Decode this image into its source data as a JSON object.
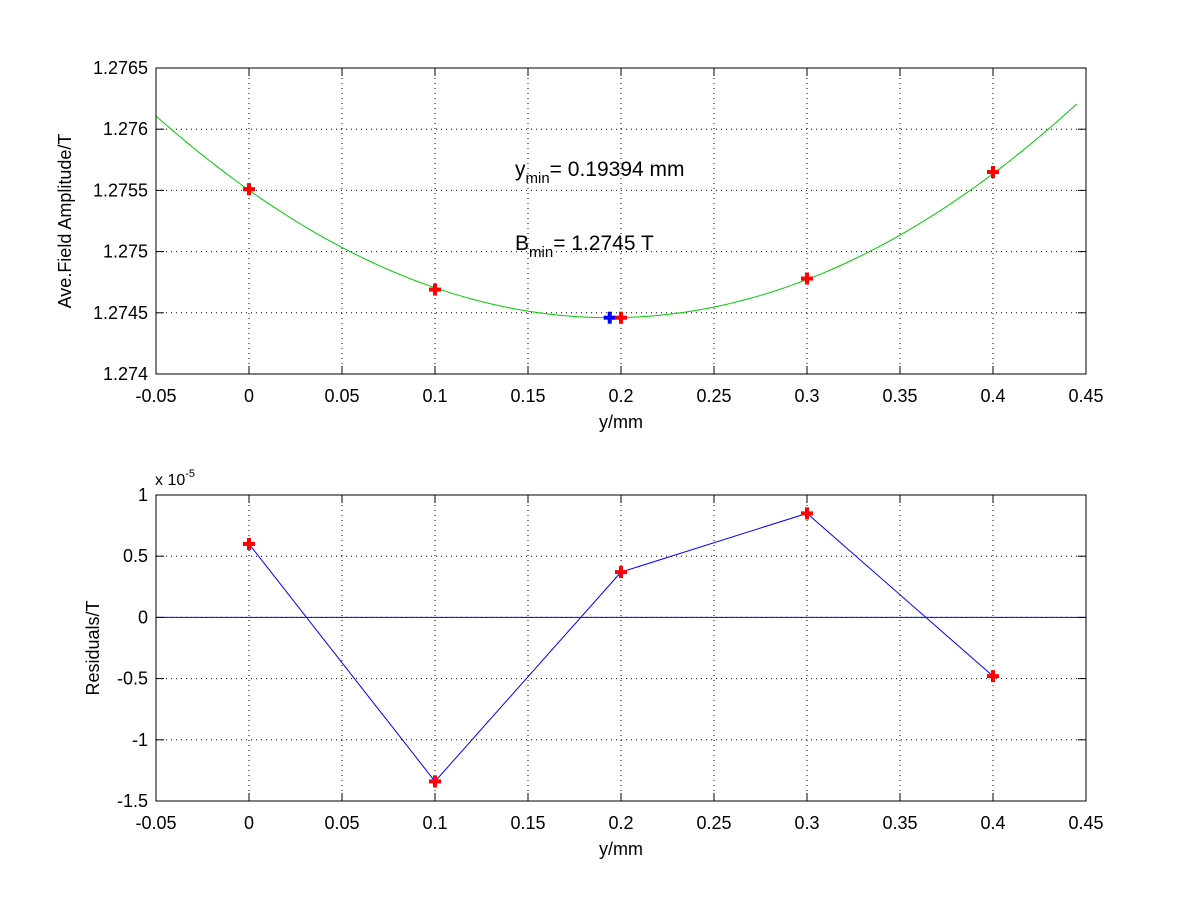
{
  "chart_data": [
    {
      "type": "scatter",
      "xlabel": "y/mm",
      "ylabel": "Ave.Field Amplitude/T",
      "xlim": [
        -0.05,
        0.45
      ],
      "ylim": [
        1.274,
        1.2765
      ],
      "x_ticks": [
        "-0.05",
        "0",
        "0.05",
        "0.1",
        "0.15",
        "0.2",
        "0.25",
        "0.3",
        "0.35",
        "0.4",
        "0.45"
      ],
      "y_ticks": [
        "1.274",
        "1.2745",
        "1.275",
        "1.2755",
        "1.276",
        "1.2765"
      ],
      "grid": true,
      "series": [
        {
          "kind": "points",
          "color": "#ff0000",
          "x": [
            0,
            0.1,
            0.2,
            0.3,
            0.4
          ],
          "y": [
            1.27551,
            1.27469,
            1.27446,
            1.27478,
            1.27565
          ]
        },
        {
          "kind": "fit-curve",
          "color": "#00cc00",
          "x_range": [
            -0.05,
            0.445
          ],
          "fit": {
            "vertex_x": 0.19394,
            "vertex_y": 1.27446,
            "a": 0.0277
          }
        },
        {
          "kind": "point",
          "color": "#0000ff",
          "x": [
            0.19394
          ],
          "y": [
            1.27446
          ]
        }
      ],
      "annotations": [
        {
          "var": "y",
          "sub": "min",
          "text": "= 0.19394 mm"
        },
        {
          "var": "B",
          "sub": "min",
          "text": "= 1.2745 T"
        }
      ]
    },
    {
      "type": "line",
      "xlabel": "y/mm",
      "ylabel": "Residuals/T",
      "xlim": [
        -0.05,
        0.45
      ],
      "ylim": [
        -1.5,
        1
      ],
      "y_multiplier": {
        "base": "x 10",
        "exp": "-5"
      },
      "x_ticks": [
        "-0.05",
        "0",
        "0.05",
        "0.1",
        "0.15",
        "0.2",
        "0.25",
        "0.3",
        "0.35",
        "0.4",
        "0.45"
      ],
      "y_ticks": [
        "-1.5",
        "-1",
        "-0.5",
        "0",
        "0.5",
        "1"
      ],
      "grid": true,
      "zero_line": true,
      "series": [
        {
          "line_color": "#0000ff",
          "marker_color": "#ff0000",
          "x": [
            0,
            0.1,
            0.2,
            0.3,
            0.4
          ],
          "y": [
            0.6,
            -1.34,
            0.37,
            0.85,
            -0.48
          ]
        }
      ]
    }
  ]
}
